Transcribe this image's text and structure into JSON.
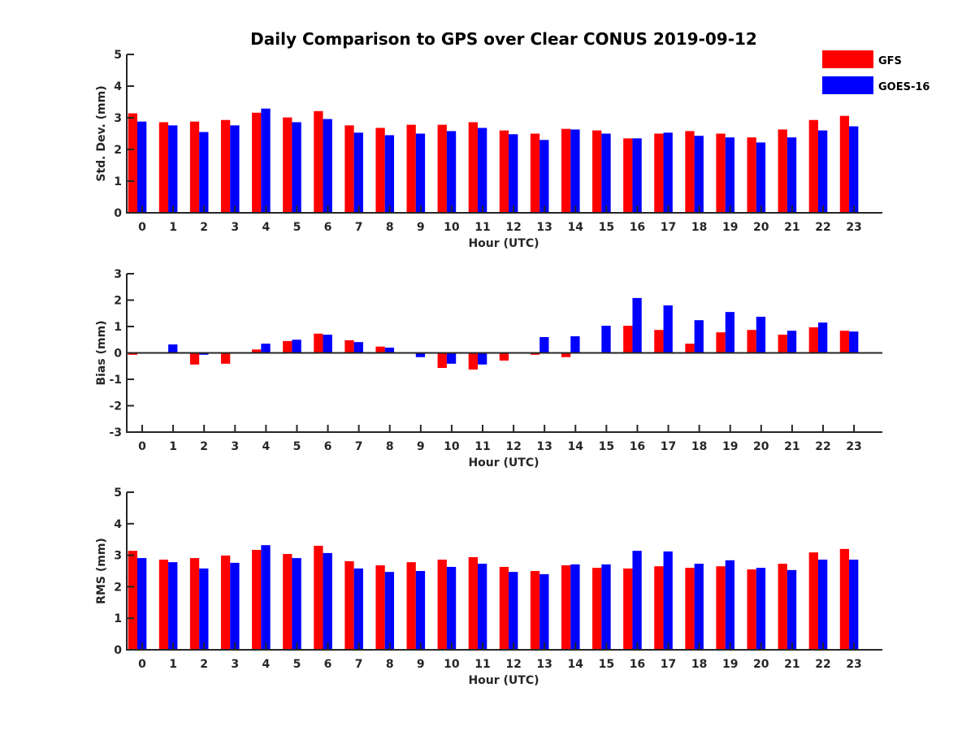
{
  "chart_data": {
    "type": "bar",
    "title": "Daily Comparison to GPS over Clear CONUS 2019-09-12",
    "legend": {
      "placement": "top-right",
      "entries": [
        {
          "name": "GFS",
          "color": "#ff0000"
        },
        {
          "name": "GOES-16",
          "color": "#0000ff"
        }
      ]
    },
    "categories": [
      "0",
      "1",
      "2",
      "3",
      "4",
      "5",
      "6",
      "7",
      "8",
      "9",
      "10",
      "11",
      "12",
      "13",
      "14",
      "15",
      "16",
      "17",
      "18",
      "19",
      "20",
      "21",
      "22",
      "23"
    ],
    "panels": [
      {
        "id": "std",
        "ylabel": "Std. Dev. (mm)",
        "xlabel": "Hour (UTC)",
        "ylim": [
          0,
          5
        ],
        "yticks": [
          "0",
          "1",
          "2",
          "3",
          "4",
          "5"
        ],
        "series": [
          {
            "name": "GFS",
            "values": [
              3.14,
              2.86,
              2.88,
              2.93,
              3.16,
              3.01,
              3.21,
              2.76,
              2.68,
              2.78,
              2.78,
              2.86,
              2.6,
              2.5,
              2.65,
              2.6,
              2.35,
              2.5,
              2.58,
              2.5,
              2.38,
              2.63,
              2.93,
              3.06
            ]
          },
          {
            "name": "GOES-16",
            "values": [
              2.88,
              2.76,
              2.55,
              2.76,
              3.29,
              2.86,
              2.96,
              2.53,
              2.45,
              2.5,
              2.58,
              2.68,
              2.48,
              2.3,
              2.63,
              2.5,
              2.35,
              2.53,
              2.43,
              2.38,
              2.22,
              2.38,
              2.6,
              2.73
            ]
          }
        ]
      },
      {
        "id": "bias",
        "ylabel": "Bias (mm)",
        "xlabel": "Hour (UTC)",
        "ylim": [
          -3,
          3
        ],
        "yticks": [
          "-3",
          "-2",
          "-1",
          "0",
          "1",
          "2",
          "3"
        ],
        "series": [
          {
            "name": "GFS",
            "values": [
              -0.07,
              0.0,
              -0.44,
              -0.41,
              0.13,
              0.45,
              0.73,
              0.48,
              0.24,
              -0.03,
              -0.57,
              -0.63,
              -0.29,
              -0.07,
              -0.16,
              0.0,
              1.03,
              0.87,
              0.35,
              0.78,
              0.87,
              0.69,
              0.97,
              0.84
            ]
          },
          {
            "name": "GOES-16",
            "values": [
              0.02,
              0.32,
              -0.07,
              -0.03,
              0.35,
              0.5,
              0.69,
              0.41,
              0.2,
              -0.16,
              -0.41,
              -0.44,
              0.02,
              0.6,
              0.63,
              1.03,
              2.08,
              1.8,
              1.24,
              1.55,
              1.37,
              0.84,
              1.15,
              0.81
            ]
          }
        ]
      },
      {
        "id": "rms",
        "ylabel": "RMS (mm)",
        "xlabel": "Hour (UTC)",
        "ylim": [
          0,
          5
        ],
        "yticks": [
          "0",
          "1",
          "2",
          "3",
          "4",
          "5"
        ],
        "series": [
          {
            "name": "GFS",
            "values": [
              3.14,
              2.86,
              2.91,
              2.99,
              3.17,
              3.04,
              3.3,
              2.81,
              2.68,
              2.78,
              2.86,
              2.94,
              2.63,
              2.5,
              2.68,
              2.6,
              2.58,
              2.65,
              2.6,
              2.65,
              2.55,
              2.73,
              3.09,
              3.2
            ]
          },
          {
            "name": "GOES-16",
            "values": [
              2.91,
              2.78,
              2.58,
              2.76,
              3.32,
              2.91,
              3.07,
              2.58,
              2.47,
              2.5,
              2.63,
              2.73,
              2.47,
              2.4,
              2.71,
              2.71,
              3.14,
              3.12,
              2.73,
              2.84,
              2.6,
              2.53,
              2.86,
              2.86
            ]
          }
        ]
      }
    ]
  }
}
